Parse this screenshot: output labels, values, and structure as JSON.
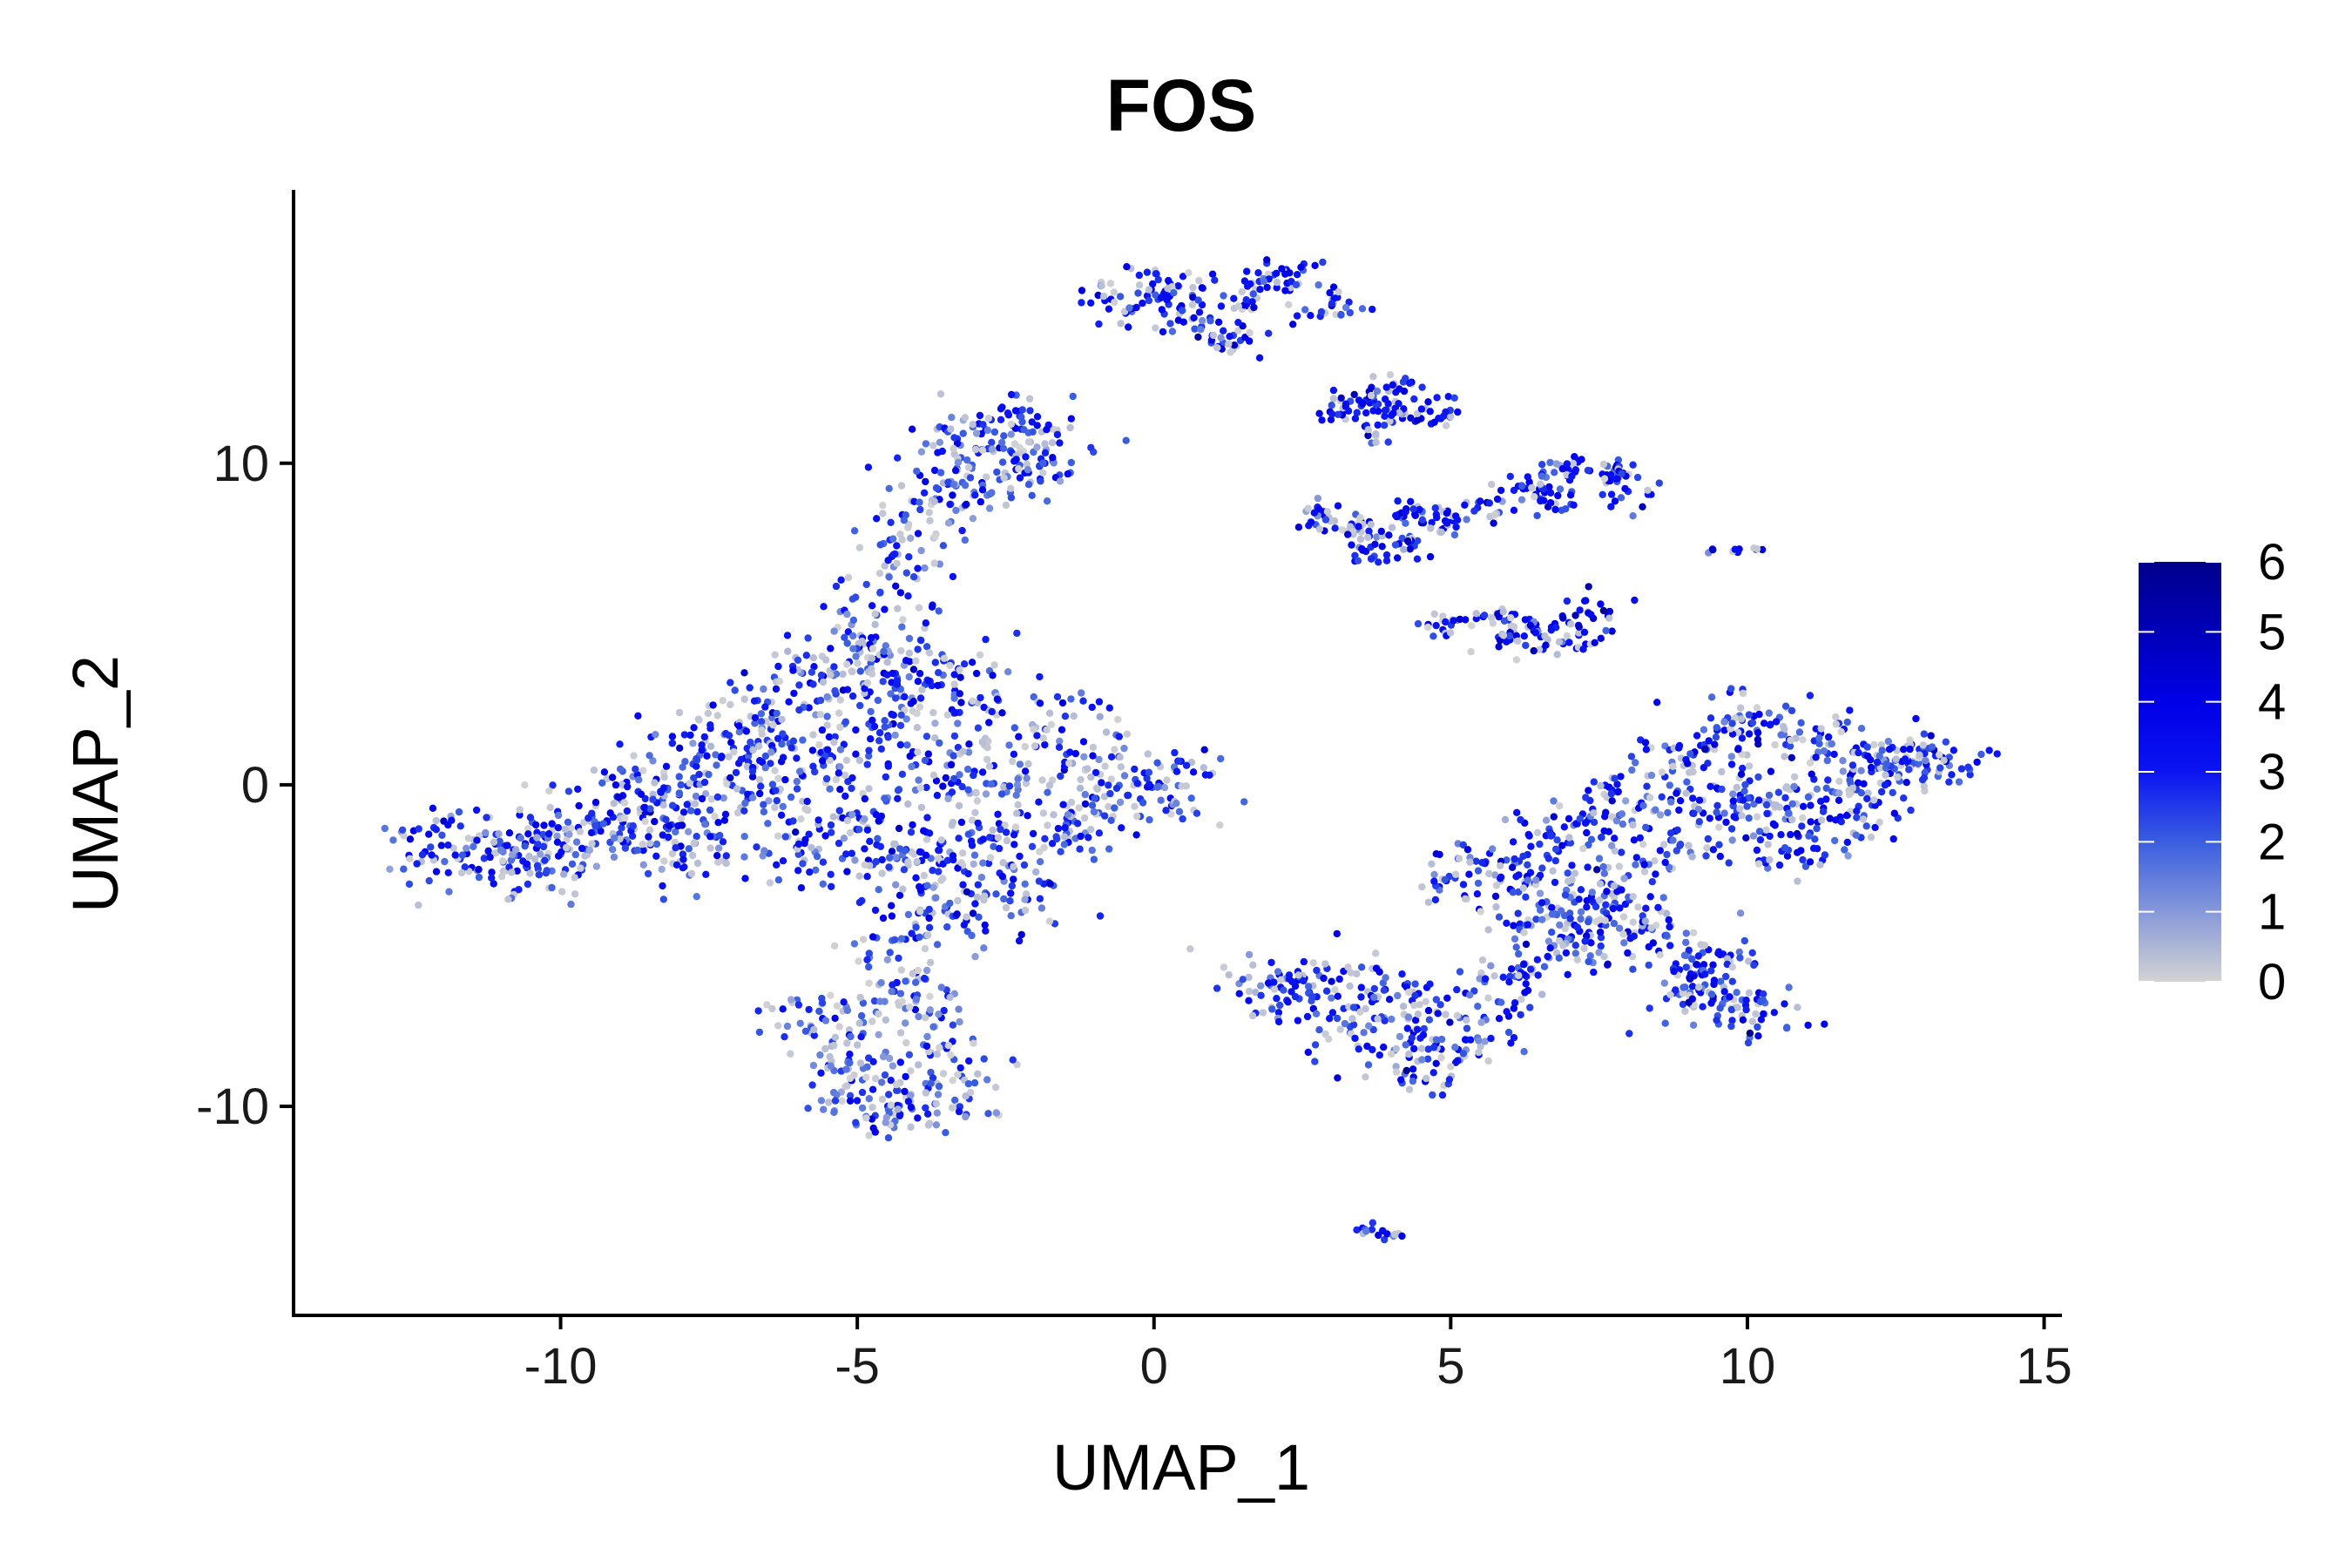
{
  "chart_data": {
    "type": "scatter",
    "title": "FOS",
    "xlabel": "UMAP_1",
    "ylabel": "UMAP_2",
    "xlim": [
      -14.5,
      15.3
    ],
    "ylim": [
      -16.5,
      18.5
    ],
    "xticks": [
      -10,
      -5,
      0,
      5,
      10,
      15
    ],
    "xtick_labels": [
      "-10",
      "-5",
      "0",
      "5",
      "10",
      "15"
    ],
    "yticks": [
      -10,
      0,
      10
    ],
    "ytick_labels": [
      "-10",
      "0",
      "10"
    ],
    "grid": false,
    "legend": {
      "placement": "right",
      "title": "",
      "min": 0,
      "max": 6,
      "ticks": [
        0,
        1,
        2,
        3,
        4,
        5,
        6
      ],
      "tick_labels": [
        "0",
        "1",
        "2",
        "3",
        "4",
        "5",
        "6"
      ],
      "gradient_stops": [
        {
          "value": 0,
          "color": "#d3d3d3"
        },
        {
          "value": 2,
          "color": "#3a5ee0"
        },
        {
          "value": 3,
          "color": "#0a14f2"
        },
        {
          "value": 4,
          "color": "#0000e6"
        },
        {
          "value": 6,
          "color": "#00008b"
        }
      ]
    },
    "clusters": [
      {
        "name": "",
        "points": [
          [
            -11.8,
            -1.8
          ],
          [
            -10.5,
            -2.0
          ],
          [
            -9.5,
            -1.0
          ],
          [
            -8.5,
            0.0
          ],
          [
            -7.5,
            1.0
          ],
          [
            -6.8,
            2.0
          ],
          [
            -6.0,
            3.0
          ],
          [
            -5.0,
            3.8
          ],
          [
            -4.0,
            3.5
          ],
          [
            -3.0,
            3.0
          ],
          [
            -2.0,
            2.0
          ],
          [
            -1.0,
            1.0
          ],
          [
            0.2,
            0.0
          ],
          [
            -0.5,
            -0.5
          ],
          [
            -1.5,
            -1.5
          ],
          [
            -2.5,
            -3.2
          ],
          [
            -3.5,
            -4.0
          ],
          [
            -4.5,
            -2.5
          ],
          [
            -6.0,
            -2.2
          ],
          [
            -8.0,
            -2.0
          ],
          [
            -10.0,
            -2.4
          ],
          [
            -11.5,
            -2.6
          ],
          [
            -7.0,
            -0.5
          ],
          [
            -5.5,
            0.5
          ],
          [
            -4.0,
            1.0
          ],
          [
            -2.5,
            0.2
          ],
          [
            -3.0,
            -1.5
          ],
          [
            -5.0,
            -1.0
          ],
          [
            -8.5,
            -1.0
          ],
          [
            -6.5,
            1.2
          ],
          [
            -4.5,
            2.2
          ],
          [
            -3.5,
            -2.0
          ]
        ],
        "spread": 0.6,
        "n": 1450,
        "expr_mean": 2.6
      },
      {
        "name": "",
        "points": [
          [
            -5.0,
            4.5
          ],
          [
            -4.6,
            5.8
          ],
          [
            -4.2,
            7.0
          ],
          [
            -3.9,
            8.2
          ],
          [
            -3.6,
            9.4
          ],
          [
            -3.3,
            10.5
          ],
          [
            -2.8,
            11.0
          ],
          [
            -2.2,
            11.3
          ],
          [
            -1.8,
            10.5
          ],
          [
            -2.6,
            10.0
          ],
          [
            -3.0,
            9.0
          ],
          [
            -2.2,
            9.8
          ]
        ],
        "spread": 0.45,
        "n": 300,
        "expr_mean": 2.4
      },
      {
        "name": "",
        "points": [
          [
            -5.8,
            -7.0
          ],
          [
            -5.3,
            -8.5
          ],
          [
            -4.8,
            -9.8
          ],
          [
            -4.2,
            -10.3
          ],
          [
            -3.5,
            -10.0
          ],
          [
            -3.2,
            -9.0
          ],
          [
            -3.6,
            -7.8
          ],
          [
            -4.0,
            -6.5
          ],
          [
            -4.3,
            -5.5
          ],
          [
            -4.6,
            -7.5
          ],
          [
            -5.0,
            -9.0
          ]
        ],
        "spread": 0.5,
        "n": 300,
        "expr_mean": 2.0
      },
      {
        "name": "",
        "points": [
          [
            2.0,
            -6.3
          ],
          [
            3.0,
            -6.0
          ],
          [
            4.0,
            -6.8
          ],
          [
            4.5,
            -8.5
          ],
          [
            5.2,
            -8.0
          ],
          [
            6.0,
            -6.5
          ],
          [
            6.8,
            -5.0
          ],
          [
            7.5,
            -3.5
          ],
          [
            8.5,
            -2.0
          ],
          [
            9.5,
            -1.0
          ],
          [
            10.5,
            -0.5
          ],
          [
            11.5,
            0.0
          ],
          [
            12.5,
            0.5
          ],
          [
            13.0,
            0.8
          ],
          [
            11.0,
            1.5
          ],
          [
            9.8,
            1.8
          ],
          [
            9.0,
            0.5
          ],
          [
            8.0,
            -0.5
          ],
          [
            7.0,
            -1.5
          ],
          [
            6.0,
            -2.5
          ],
          [
            5.3,
            -3.0
          ],
          [
            8.0,
            -4.5
          ],
          [
            9.5,
            -5.5
          ],
          [
            10.0,
            -7.0
          ],
          [
            9.0,
            -6.5
          ],
          [
            3.5,
            -7.5
          ],
          [
            6.5,
            -3.8
          ],
          [
            10.8,
            -2.0
          ],
          [
            11.8,
            -1.0
          ]
        ],
        "spread": 0.5,
        "n": 1300,
        "expr_mean": 2.7
      },
      {
        "name": "",
        "points": [
          [
            -0.8,
            15.2
          ],
          [
            0.0,
            14.8
          ],
          [
            0.8,
            14.6
          ],
          [
            1.5,
            15.2
          ],
          [
            2.2,
            15.8
          ],
          [
            2.9,
            15.0
          ],
          [
            1.2,
            13.8
          ],
          [
            0.4,
            15.6
          ]
        ],
        "spread": 0.3,
        "n": 200,
        "expr_mean": 3.0
      },
      {
        "name": "",
        "points": [
          [
            3.0,
            11.7
          ],
          [
            3.6,
            12.0
          ],
          [
            4.2,
            11.6
          ],
          [
            4.8,
            11.5
          ],
          [
            3.8,
            11.0
          ],
          [
            4.2,
            12.4
          ]
        ],
        "spread": 0.22,
        "n": 110,
        "expr_mean": 3.2
      },
      {
        "name": "",
        "points": [
          [
            2.8,
            8.4
          ],
          [
            3.5,
            8.0
          ],
          [
            4.3,
            8.4
          ],
          [
            5.0,
            8.2
          ],
          [
            5.6,
            8.6
          ],
          [
            6.3,
            9.2
          ],
          [
            7.0,
            9.8
          ],
          [
            7.8,
            9.6
          ],
          [
            8.0,
            9.0
          ],
          [
            6.8,
            8.8
          ],
          [
            3.6,
            7.2
          ],
          [
            4.3,
            7.5
          ]
        ],
        "spread": 0.22,
        "n": 260,
        "expr_mean": 3.0
      },
      {
        "name": "",
        "points": [
          [
            5.0,
            5.0
          ],
          [
            5.8,
            5.2
          ],
          [
            6.6,
            5.0
          ],
          [
            7.3,
            5.5
          ],
          [
            6.2,
            4.5
          ],
          [
            7.2,
            4.6
          ]
        ],
        "spread": 0.25,
        "n": 120,
        "expr_mean": 3.3
      },
      {
        "name": "",
        "points": [
          [
            9.4,
            7.3
          ],
          [
            9.8,
            7.3
          ],
          [
            10.2,
            7.3
          ]
        ],
        "spread": 0.05,
        "n": 14,
        "expr_mean": 3.0
      },
      {
        "name": "",
        "points": [
          [
            3.6,
            -13.8
          ],
          [
            4.0,
            -14.1
          ]
        ],
        "spread": 0.12,
        "n": 16,
        "expr_mean": 3.0
      }
    ]
  }
}
